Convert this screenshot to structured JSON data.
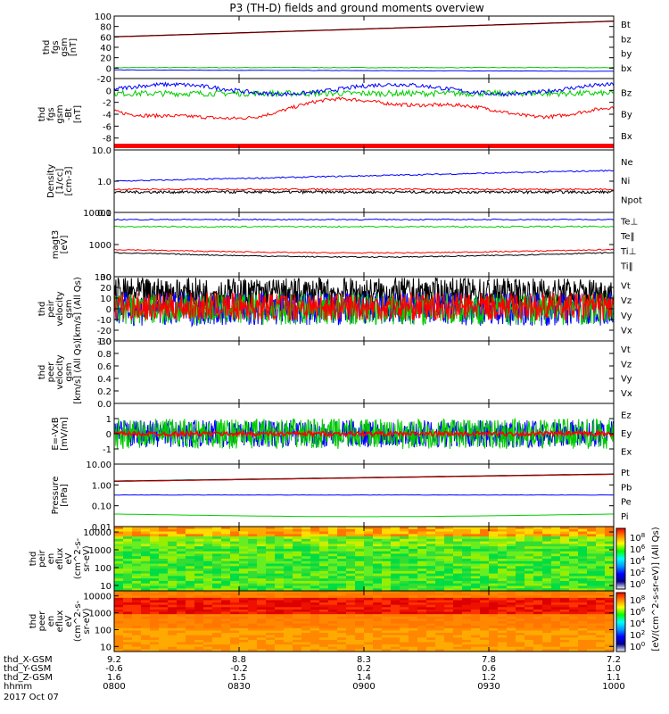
{
  "title": "P3 (TH-D) fields and ground moments overview",
  "colors": {
    "black": "#000000",
    "red": "#ff0000",
    "green": "#00cc00",
    "blue": "#0000ff"
  },
  "chart_data": {
    "type": "line",
    "panels": [
      {
        "id": "fgs_gsm",
        "ylabel": [
          "thd",
          "fgs",
          "gsm",
          "[nT]"
        ],
        "ylim": [
          -20,
          100
        ],
        "yticks": [
          "100",
          "80",
          "60",
          "40",
          "20",
          "0",
          "-20"
        ],
        "legend": [
          {
            "label": "Bt",
            "color": "black"
          },
          {
            "label": "bz",
            "color": "red"
          },
          {
            "label": "by",
            "color": "green"
          },
          {
            "label": "bx",
            "color": "blue"
          }
        ]
      },
      {
        "id": "fgs_gse",
        "ylabel": [
          "thd",
          "fgs",
          "gsm",
          "-Bt",
          "[nT]"
        ],
        "ylim": [
          -10,
          2
        ],
        "yticks": [
          "0",
          "-2",
          "-4",
          "-6",
          "-8"
        ],
        "legend": [
          {
            "label": "Bz",
            "color": "red"
          },
          {
            "label": "By",
            "color": "green"
          },
          {
            "label": "Bx",
            "color": "blue"
          }
        ]
      },
      {
        "id": "density",
        "ylabel": [
          "Density",
          "[1/cc]",
          "[cm-3]"
        ],
        "ylim": [
          0.1,
          10
        ],
        "scale": "log",
        "yticks": [
          "10.0",
          "1.0",
          "0.1"
        ],
        "legend": [
          {
            "label": "Ne",
            "color": "red"
          },
          {
            "label": "Ni",
            "color": "black"
          },
          {
            "label": "Npot",
            "color": "blue"
          }
        ]
      },
      {
        "id": "temperature",
        "ylabel": [
          "magt3",
          "[eV]"
        ],
        "ylim": [
          100,
          10000
        ],
        "scale": "log",
        "yticks": [
          "10000",
          "1000",
          "100"
        ],
        "legend": [
          {
            "label": "Te⊥",
            "color": "red"
          },
          {
            "label": "Te‖",
            "color": "black"
          },
          {
            "label": "Ti⊥",
            "color": "red"
          },
          {
            "label": "Ti‖",
            "color": "green"
          }
        ]
      },
      {
        "id": "peir_velocity",
        "ylabel": [
          "thd",
          "peir",
          "velocity",
          "gsm",
          "[km/s] (All Qs)"
        ],
        "ylim": [
          -30,
          30
        ],
        "yticks": [
          "30",
          "20",
          "10",
          "0",
          "-10",
          "-20",
          "-30"
        ],
        "legend": [
          {
            "label": "Vt",
            "color": "black"
          },
          {
            "label": "Vz",
            "color": "red"
          },
          {
            "label": "Vy",
            "color": "green"
          },
          {
            "label": "Vx",
            "color": "blue"
          }
        ]
      },
      {
        "id": "peer_velocity",
        "ylabel": [
          "thd",
          "peer",
          "velocity",
          "gsm",
          "[km/s] (All Qs)"
        ],
        "ylim": [
          0,
          1
        ],
        "yticks": [
          "1.0",
          "0.8",
          "0.6",
          "0.4",
          "0.2",
          "0.0"
        ],
        "legend": [
          {
            "label": "Vt",
            "color": "black"
          },
          {
            "label": "Vz",
            "color": "red"
          },
          {
            "label": "Vy",
            "color": "green"
          },
          {
            "label": "Vx",
            "color": "blue"
          }
        ]
      },
      {
        "id": "efield",
        "ylabel": [
          "E=-VxB",
          "[mV/m]"
        ],
        "ylim": [
          -2,
          2
        ],
        "yticks": [
          "1",
          "0",
          "-1"
        ],
        "legend": [
          {
            "label": "Ez",
            "color": "red"
          },
          {
            "label": "Ey",
            "color": "green"
          },
          {
            "label": "Ex",
            "color": "blue"
          }
        ]
      },
      {
        "id": "pressure",
        "ylabel": [
          "Pressure",
          "[nPa]"
        ],
        "ylim": [
          0.01,
          10
        ],
        "scale": "log",
        "yticks": [
          "10.00",
          "1.00",
          "0.10",
          "0.01"
        ],
        "legend": [
          {
            "label": "Pt",
            "color": "black"
          },
          {
            "label": "Pb",
            "color": "red"
          },
          {
            "label": "Pe",
            "color": "green"
          },
          {
            "label": "Pi",
            "color": "blue"
          }
        ]
      },
      {
        "id": "peir_en_eflux",
        "type": "heatmap",
        "ylabel": [
          "thd",
          "peir",
          "en",
          "eflux",
          "eV",
          "(cm^2-s-",
          "sr-eV)"
        ],
        "ylim": [
          5,
          20000
        ],
        "scale": "log",
        "yticks": [
          "10000",
          "1000",
          "100",
          "10"
        ]
      },
      {
        "id": "peer_en_eflux",
        "type": "heatmap",
        "ylabel": [
          "thd",
          "peer",
          "en",
          "eflux",
          "eV",
          "(cm^2-s-",
          "sr-eV)"
        ],
        "ylim": [
          5,
          20000
        ],
        "scale": "log",
        "yticks": [
          "10000",
          "1000",
          "100",
          "10"
        ]
      }
    ],
    "colorbar": {
      "label": "[eV/(cm^2-s-sr-eV)] (All Qs)",
      "ticks": [
        "10^8",
        "10^6",
        "10^4",
        "10^2",
        "10^0"
      ],
      "ticks2": [
        "10^8",
        "10^6",
        "10^4",
        "10^2",
        "10^0"
      ]
    },
    "xaxis": {
      "rows": [
        {
          "label": "thd_X-GSM",
          "values": [
            "9.2",
            "8.8",
            "8.3",
            "7.8",
            "7.2"
          ]
        },
        {
          "label": "thd_Y-GSM",
          "values": [
            "-0.6",
            "-0.2",
            "0.2",
            "0.6",
            "1.0"
          ]
        },
        {
          "label": "thd_Z-GSM",
          "values": [
            "1.6",
            "1.5",
            "1.4",
            "1.2",
            "1.1"
          ]
        },
        {
          "label": "hhmm",
          "values": [
            "0800",
            "0830",
            "0900",
            "0930",
            "1000"
          ]
        }
      ],
      "date": "2017 Oct 07"
    }
  }
}
